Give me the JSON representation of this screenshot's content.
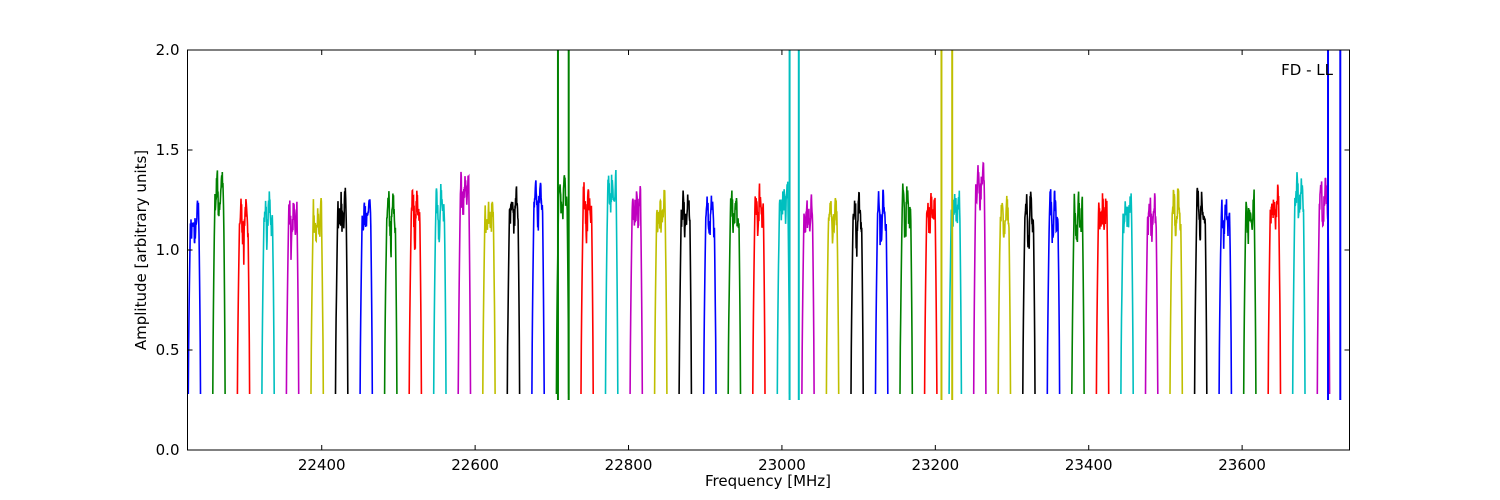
{
  "chart_data": {
    "type": "line",
    "title": "",
    "annotation": "FD - LL",
    "xlabel": "Frequency [MHz]",
    "ylabel": "Amplitude [arbitrary units]",
    "xlim": [
      22225,
      23740
    ],
    "ylim": [
      0.0,
      2.0
    ],
    "x_ticks": [
      22400,
      22600,
      22800,
      23000,
      23200,
      23400,
      23600
    ],
    "x_tick_labels": [
      "22400",
      "22600",
      "22800",
      "23000",
      "23200",
      "23400",
      "23600"
    ],
    "y_ticks": [
      0.0,
      0.5,
      1.0,
      1.5,
      2.0
    ],
    "y_tick_labels": [
      "0.0",
      "0.5",
      "1.0",
      "1.5",
      "2.0"
    ],
    "grid": false,
    "legend": "none",
    "color_cycle": [
      "#0000ff",
      "#008000",
      "#ff0000",
      "#00bfbf",
      "#bf00bf",
      "#bfbf00",
      "#000000"
    ],
    "channel_width_mhz": 16,
    "channel_start_mhz": [
      22226,
      22258,
      22290,
      22322,
      22354,
      22386,
      22418,
      22450,
      22482,
      22514,
      22546,
      22578,
      22610,
      22642,
      22674,
      22706,
      22738,
      22770,
      22802,
      22834,
      22866,
      22898,
      22930,
      22962,
      22994,
      23026,
      23058,
      23090,
      23122,
      23154,
      23186,
      23218,
      23250,
      23282,
      23314,
      23346,
      23378,
      23410,
      23442,
      23474,
      23506,
      23538,
      23570,
      23602,
      23634,
      23666,
      23698
    ],
    "channel_plateau_level": [
      1.15,
      1.3,
      1.15,
      1.18,
      1.17,
      1.16,
      1.2,
      1.19,
      1.18,
      1.2,
      1.22,
      1.3,
      1.18,
      1.22,
      1.26,
      1.28,
      1.22,
      1.3,
      1.22,
      1.2,
      1.22,
      1.18,
      1.2,
      1.22,
      1.25,
      1.2,
      1.18,
      1.18,
      1.2,
      1.22,
      1.2,
      1.22,
      1.35,
      1.18,
      1.18,
      1.2,
      1.18,
      1.2,
      1.2,
      1.18,
      1.2,
      1.2,
      1.18,
      1.2,
      1.22,
      1.28,
      1.25
    ],
    "spikes": [
      {
        "x": 22708,
        "color": "#008000"
      },
      {
        "x": 22722,
        "color": "#008000"
      },
      {
        "x": 23010,
        "color": "#00bfbf"
      },
      {
        "x": 23022,
        "color": "#00bfbf"
      },
      {
        "x": 23208,
        "color": "#bfbf00"
      },
      {
        "x": 23222,
        "color": "#bfbf00"
      },
      {
        "x": 23712,
        "color": "#0000ff"
      },
      {
        "x": 23728,
        "color": "#0000ff"
      }
    ]
  }
}
